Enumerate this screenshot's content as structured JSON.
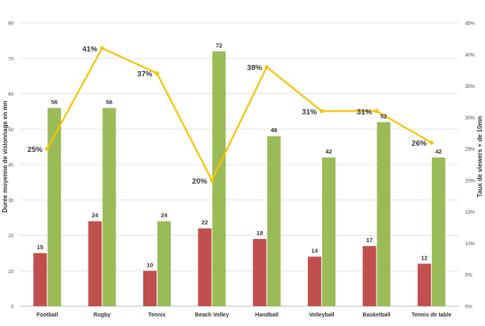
{
  "chart_data": {
    "type": "bar",
    "categories": [
      "Football",
      "Rugby",
      "Tennis",
      "Beach Volley",
      "Handball",
      "Volleyball",
      "Basketball",
      "Tennis de table"
    ],
    "series": [
      {
        "values": [
          15,
          24,
          10,
          22,
          19,
          14,
          17,
          12
        ],
        "color": "#c0504d",
        "axis": "left",
        "kind": "bar"
      },
      {
        "values": [
          56,
          56,
          24,
          72,
          48,
          42,
          52,
          42
        ],
        "color": "#9bbb59",
        "axis": "left",
        "kind": "bar"
      },
      {
        "values": [
          25,
          41,
          37,
          20,
          38,
          31,
          31,
          26
        ],
        "color": "#f5c400",
        "axis": "right",
        "kind": "line",
        "unit": "%"
      }
    ],
    "ylabel": "Durée moyenne de visionnage en mn",
    "y2label": "Taux de viewers + de 10mn",
    "ylim": [
      0,
      80
    ],
    "yticks": [
      0,
      10,
      20,
      30,
      40,
      50,
      60,
      70,
      80
    ],
    "y2lim": [
      0,
      45
    ],
    "y2ticks": [
      0,
      5,
      10,
      15,
      20,
      25,
      30,
      35,
      40,
      45
    ],
    "y2tick_suffix": "%",
    "grid": true,
    "legend_position": "bottom"
  }
}
